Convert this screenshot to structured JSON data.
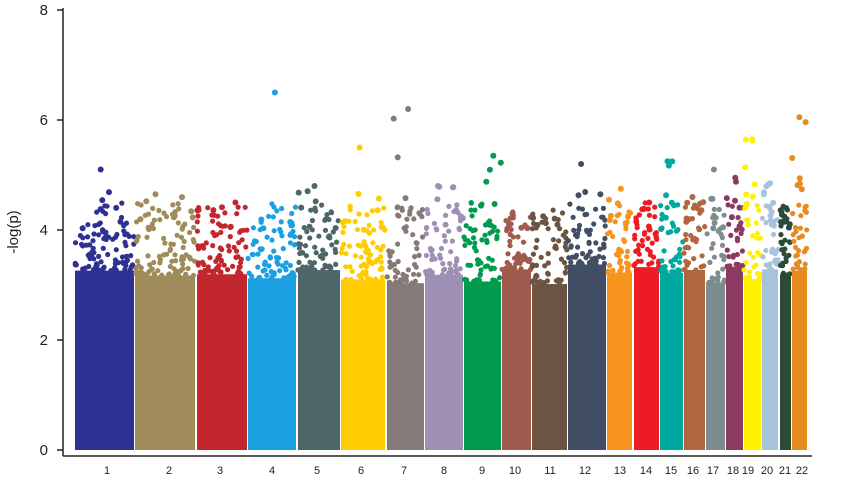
{
  "chart_data": {
    "type": "scatter",
    "title": "",
    "xlabel": "",
    "ylabel": "-log(p)",
    "ylim": [
      0,
      8
    ],
    "yticks": [
      0,
      2,
      4,
      6,
      8
    ],
    "grid": false,
    "legend": "none",
    "categories": [
      "1",
      "2",
      "3",
      "4",
      "5",
      "6",
      "7",
      "8",
      "9",
      "10",
      "11",
      "12",
      "13",
      "14",
      "15",
      "16",
      "17",
      "18",
      "19",
      "20",
      "21",
      "22"
    ],
    "series": [
      {
        "chrom": "1",
        "color": "#2E3192",
        "peak": 5.1
      },
      {
        "chrom": "2",
        "color": "#A08C5B",
        "peak": 4.65
      },
      {
        "chrom": "3",
        "color": "#C1272D",
        "peak": 4.5
      },
      {
        "chrom": "4",
        "color": "#1BA1E2",
        "peak": 6.5
      },
      {
        "chrom": "5",
        "color": "#4E6569",
        "peak": 4.8
      },
      {
        "chrom": "6",
        "color": "#FFCC00",
        "peak": 5.5
      },
      {
        "chrom": "7",
        "color": "#857A78",
        "peak": 6.2
      },
      {
        "chrom": "8",
        "color": "#9E90B5",
        "peak": 4.8
      },
      {
        "chrom": "9",
        "color": "#009B4E",
        "peak": 5.35
      },
      {
        "chrom": "10",
        "color": "#A05A4E",
        "peak": 4.3
      },
      {
        "chrom": "11",
        "color": "#6B5542",
        "peak": 4.25
      },
      {
        "chrom": "12",
        "color": "#414E63",
        "peak": 5.2
      },
      {
        "chrom": "13",
        "color": "#F7941D",
        "peak": 4.75
      },
      {
        "chrom": "14",
        "color": "#ED1C24",
        "peak": 4.5
      },
      {
        "chrom": "15",
        "color": "#00A99D",
        "peak": 5.25
      },
      {
        "chrom": "16",
        "color": "#B0673F",
        "peak": 4.6
      },
      {
        "chrom": "17",
        "color": "#7D8C8E",
        "peak": 5.1
      },
      {
        "chrom": "18",
        "color": "#8B3A62",
        "peak": 4.95
      },
      {
        "chrom": "19",
        "color": "#FFF200",
        "peak": 5.65
      },
      {
        "chrom": "20",
        "color": "#A7C3DB",
        "peak": 4.85
      },
      {
        "chrom": "21",
        "color": "#2D4A38",
        "peak": 4.4
      },
      {
        "chrom": "22",
        "color": "#E88B1E",
        "peak": 6.05
      }
    ]
  }
}
